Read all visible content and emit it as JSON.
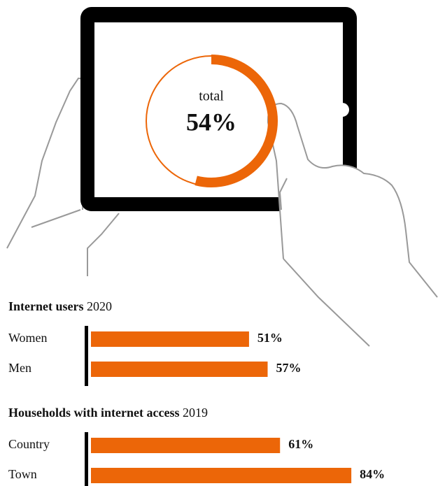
{
  "chart_data": [
    {
      "type": "donut",
      "label": "total",
      "value": 54,
      "value_label": "54%",
      "color": "#ec6608"
    },
    {
      "type": "bar",
      "title": "Internet users",
      "subtitle": "2020",
      "categories": [
        "Women",
        "Men"
      ],
      "values": [
        51,
        57
      ],
      "value_labels": [
        "51%",
        "57%"
      ],
      "color": "#ec6608"
    },
    {
      "type": "bar",
      "title": "Households with internet access",
      "subtitle": "2019",
      "categories": [
        "Country",
        "Town"
      ],
      "values": [
        61,
        84
      ],
      "value_labels": [
        "61%",
        "84%"
      ],
      "color": "#ec6608"
    }
  ]
}
